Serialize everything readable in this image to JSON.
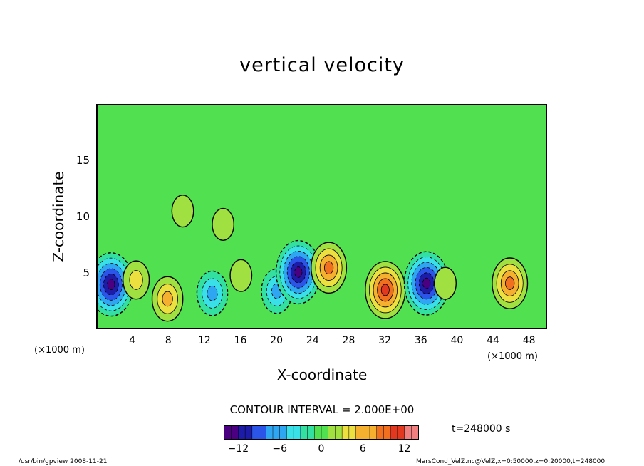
{
  "chart_data": {
    "type": "heatmap",
    "title": "vertical velocity",
    "xlabel": "X-coordinate",
    "ylabel": "Z-coordinate",
    "x_unit_left": "(×1000 m)",
    "x_unit_right": "(×1000 m)",
    "xlim": [
      0,
      50
    ],
    "ylim": [
      0,
      20
    ],
    "x_ticks": [
      4,
      8,
      12,
      16,
      20,
      24,
      28,
      32,
      36,
      40,
      44,
      48
    ],
    "y_ticks": [
      5,
      10,
      15
    ],
    "contour_interval_label": "CONTOUR INTERVAL = 2.000E+00",
    "colorbar": {
      "range": [
        -14,
        14
      ],
      "ticks": [
        -12,
        -6,
        0,
        6,
        12
      ],
      "colors": [
        "#4b0082",
        "#1c1ca8",
        "#2a55e8",
        "#2fa6f2",
        "#39e0e8",
        "#34e0a0",
        "#50e050",
        "#a0e040",
        "#ece040",
        "#f5b030",
        "#f07020",
        "#e23820",
        "#f08080"
      ]
    },
    "features": [
      {
        "x": 1.5,
        "z": 3.9,
        "w": -12
      },
      {
        "x": 4.3,
        "z": 4.3,
        "w": 4
      },
      {
        "x": 7.8,
        "z": 2.6,
        "w": 6
      },
      {
        "x": 12.8,
        "z": 3.1,
        "w": -6
      },
      {
        "x": 16,
        "z": 4.7,
        "w": 2
      },
      {
        "x": 20,
        "z": 3.3,
        "w": -6
      },
      {
        "x": 22.4,
        "z": 5.0,
        "w": -12
      },
      {
        "x": 25.8,
        "z": 5.4,
        "w": 8
      },
      {
        "x": 32.1,
        "z": 3.4,
        "w": 10
      },
      {
        "x": 36.7,
        "z": 4.0,
        "w": -12
      },
      {
        "x": 38.8,
        "z": 4.0,
        "w": 2
      },
      {
        "x": 46.0,
        "z": 4.0,
        "w": 8
      },
      {
        "x": 9.5,
        "z": 10.5,
        "w": 2
      },
      {
        "x": 14,
        "z": 9.3,
        "w": 2
      }
    ]
  },
  "time_label": "t=248000 s",
  "footer": {
    "left": "/usr/bin/gpview   2008-11-21",
    "right": "MarsCond_VelZ.nc@VelZ,x=0:50000,z=0:20000,t=248000"
  }
}
